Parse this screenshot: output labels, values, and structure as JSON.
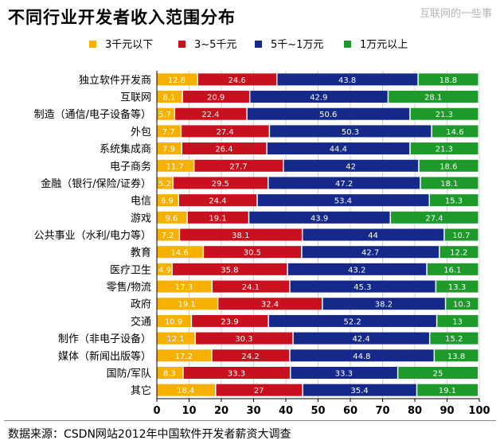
{
  "title": "不同行业开发者收入范围分布",
  "watermark": "互联网的一些事",
  "source": "数据来源：CSDN网站2012年中国软件开发者薪资大调查",
  "colors": {
    "series": [
      "#f5b000",
      "#c9101e",
      "#15298a",
      "#1e9a2b"
    ],
    "grid": "#d0d0d0",
    "axis": "#000000"
  },
  "chart_data": {
    "type": "bar",
    "orientation": "horizontal",
    "stacked": true,
    "title": "不同行业开发者收入范围分布",
    "xlim": [
      0,
      100
    ],
    "x_ticks": [
      0,
      10,
      20,
      30,
      40,
      50,
      60,
      70,
      80,
      90,
      100
    ],
    "grid": true,
    "legend_position": "top",
    "categories": [
      "独立软件开发商",
      "互联网",
      "制造（通信/电子设备等）",
      "外包",
      "系统集成商",
      "电子商务",
      "金融（银行/保险/证券）",
      "电信",
      "游戏",
      "公共事业（水利/电力等）",
      "教育",
      "医疗卫生",
      "零售/物流",
      "政府",
      "交通",
      "制作（非电子设备）",
      "媒体（新闻出版等）",
      "国防/军队",
      "其它"
    ],
    "series": [
      {
        "name": "3千元以下",
        "values": [
          12.8,
          8.1,
          5.7,
          7.7,
          7.9,
          11.7,
          5.2,
          6.9,
          9.6,
          7.2,
          14.6,
          4.9,
          17.3,
          19.1,
          10.9,
          12.1,
          17.2,
          8.3,
          18.4
        ]
      },
      {
        "name": "3~5千元",
        "values": [
          24.6,
          20.9,
          22.4,
          27.4,
          26.4,
          27.7,
          29.5,
          24.4,
          19.1,
          38.1,
          30.5,
          35.8,
          24.1,
          32.4,
          23.9,
          30.3,
          24.2,
          33.3,
          27
        ]
      },
      {
        "name": "5千~1万元",
        "values": [
          43.8,
          42.9,
          50.6,
          50.3,
          44.4,
          42,
          47.2,
          53.4,
          43.9,
          44,
          42.7,
          43.2,
          45.3,
          38.2,
          52.2,
          42.4,
          44.8,
          33.3,
          35.4
        ]
      },
      {
        "name": "1万元以上",
        "values": [
          18.8,
          28.1,
          21.3,
          14.6,
          21.3,
          18.6,
          18.1,
          15.3,
          27.4,
          10.7,
          12.2,
          16.1,
          13.3,
          10.3,
          13,
          15.2,
          13.8,
          25,
          19.1
        ]
      }
    ]
  }
}
